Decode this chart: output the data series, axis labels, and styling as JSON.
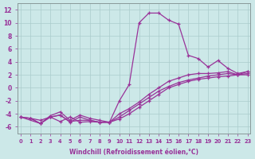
{
  "bg_color": "#cce8e8",
  "line_color": "#993399",
  "grid_color": "#aacccc",
  "xlabel": "Windchill (Refroidissement éolien,°C)",
  "x_full": [
    0,
    1,
    2,
    3,
    4,
    5,
    6,
    7,
    8,
    9,
    10,
    11,
    12,
    13,
    14,
    15,
    16,
    17,
    18,
    19,
    20,
    21,
    22,
    23
  ],
  "line_spike_x": [
    1,
    2,
    3,
    4,
    5,
    6,
    7,
    8,
    9,
    10,
    11,
    12,
    13,
    14,
    15,
    16,
    17,
    18,
    19,
    20,
    21,
    22,
    23
  ],
  "line_spike": [
    -4.7,
    -5.0,
    -4.5,
    -5.2,
    -4.5,
    -5.3,
    -5.2,
    -5.3,
    -5.3,
    -2.0,
    0.5,
    10.0,
    11.5,
    11.5,
    10.4,
    9.8,
    5.0,
    4.5,
    3.2,
    4.2,
    3.0,
    2.2,
    2.5
  ],
  "line_a_x": [
    0,
    1,
    2,
    3,
    4,
    5,
    6,
    7,
    8,
    9,
    10,
    11,
    12,
    13,
    14,
    15,
    16,
    17,
    18,
    19,
    20,
    21,
    22,
    23
  ],
  "line_a": [
    -4.5,
    -4.7,
    -5.5,
    -4.3,
    -3.7,
    -5.0,
    -4.2,
    -4.7,
    -5.0,
    -5.3,
    -4.0,
    -3.2,
    -2.2,
    -1.0,
    0.0,
    1.0,
    1.5,
    2.0,
    2.2,
    2.2,
    2.3,
    2.5,
    2.0,
    2.5
  ],
  "line_b_x": [
    0,
    1,
    2,
    3,
    4,
    5,
    6,
    7,
    8,
    9,
    10,
    11,
    12,
    13,
    14,
    15,
    16,
    17,
    18,
    19,
    20,
    21,
    22,
    23
  ],
  "line_b": [
    -4.5,
    -4.7,
    -5.5,
    -4.5,
    -4.2,
    -5.2,
    -5.0,
    -5.0,
    -5.3,
    -5.3,
    -4.5,
    -3.5,
    -2.5,
    -1.5,
    -0.5,
    0.2,
    0.8,
    1.2,
    1.5,
    1.8,
    2.0,
    2.2,
    2.0,
    2.2
  ],
  "line_c_x": [
    0,
    2,
    3,
    4,
    5,
    6,
    7,
    8,
    9,
    10,
    11,
    12,
    13,
    14,
    15,
    16,
    17,
    18,
    19,
    20,
    21,
    22,
    23
  ],
  "line_c": [
    -4.5,
    -5.5,
    -4.5,
    -4.2,
    -5.3,
    -4.5,
    -5.0,
    -5.3,
    -5.3,
    -4.8,
    -4.0,
    -3.0,
    -2.0,
    -1.0,
    0.0,
    0.5,
    1.0,
    1.3,
    1.5,
    1.7,
    1.8,
    2.0,
    2.0
  ],
  "ylim": [
    -7,
    13
  ],
  "xlim": [
    -0.3,
    23.3
  ],
  "yticks": [
    -6,
    -4,
    -2,
    0,
    2,
    4,
    6,
    8,
    10,
    12
  ],
  "xticks": [
    0,
    1,
    2,
    3,
    4,
    5,
    6,
    7,
    8,
    9,
    10,
    11,
    12,
    13,
    14,
    15,
    16,
    17,
    18,
    19,
    20,
    21,
    22,
    23
  ]
}
